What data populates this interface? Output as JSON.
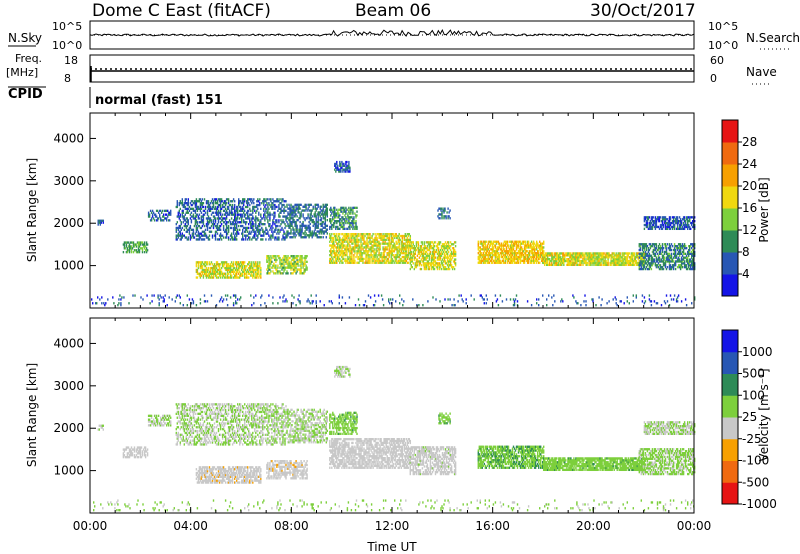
{
  "header": {
    "station": "Dome C East (fitACF)",
    "beam": "Beam 06",
    "date": "30/Oct/2017"
  },
  "strips": {
    "nsky_label": "N.Sky",
    "nsearch_label": "N.Search",
    "nsky_ticks": [
      "10^5",
      "10^0"
    ],
    "nsearch_ticks": [
      "10^5",
      "10^0"
    ],
    "freq_label_1": "Freq.",
    "freq_label_2": "[MHz]",
    "freq_ticks": [
      "18",
      "8"
    ],
    "nave_label": "Nave",
    "nave_ticks": [
      "60",
      "0"
    ],
    "cpid_label": "CPID",
    "cpid_value": "normal (fast)  151"
  },
  "colors": {
    "power": [
      "#1414e6",
      "#2857b4",
      "#2e8b57",
      "#7dcf3c",
      "#f0d80f",
      "#f7a000",
      "#f06a10",
      "#e61414"
    ],
    "velocity": [
      "#e61414",
      "#f06a10",
      "#f7a000",
      "#c8c8c8",
      "#7dcf3c",
      "#2e8b57",
      "#2857b4",
      "#1414e6"
    ]
  },
  "chart_data": [
    {
      "type": "heatmap",
      "panel": "power",
      "xlabel": "",
      "ylabel": "Slant Range [km]",
      "x_range_hours": [
        0,
        24
      ],
      "ylim": [
        0,
        4600
      ],
      "y_ticks": [
        "4000",
        "3000",
        "2000",
        "1000"
      ],
      "colorbar": {
        "label": "Power [dB]",
        "tick_labels": [
          "28",
          "24",
          "20",
          "16",
          "12",
          "8",
          "4"
        ],
        "range": [
          0,
          32
        ]
      },
      "echo_regions": [
        {
          "start": 0.0,
          "end": 24.0,
          "range_lo": 50,
          "range_hi": 300,
          "value": 6,
          "density": 0.08
        },
        {
          "start": 0.3,
          "end": 0.5,
          "range_lo": 1950,
          "range_hi": 2050,
          "value": 6,
          "density": 0.6
        },
        {
          "start": 1.3,
          "end": 2.3,
          "range_lo": 1300,
          "range_hi": 1550,
          "value": 12,
          "density": 0.55
        },
        {
          "start": 2.3,
          "end": 3.2,
          "range_lo": 2050,
          "range_hi": 2300,
          "value": 7,
          "density": 0.5
        },
        {
          "start": 3.4,
          "end": 7.8,
          "range_lo": 1600,
          "range_hi": 2550,
          "value": 7,
          "density": 0.45
        },
        {
          "start": 4.2,
          "end": 6.8,
          "range_lo": 700,
          "range_hi": 1100,
          "value": 17,
          "density": 0.65
        },
        {
          "start": 7.0,
          "end": 8.6,
          "range_lo": 800,
          "range_hi": 1250,
          "value": 15,
          "density": 0.6
        },
        {
          "start": 7.8,
          "end": 9.4,
          "range_lo": 1650,
          "range_hi": 2450,
          "value": 8,
          "density": 0.5
        },
        {
          "start": 9.7,
          "end": 10.3,
          "range_lo": 3200,
          "range_hi": 3450,
          "value": 6,
          "density": 0.6
        },
        {
          "start": 9.5,
          "end": 10.6,
          "range_lo": 1850,
          "range_hi": 2350,
          "value": 10,
          "density": 0.55
        },
        {
          "start": 9.5,
          "end": 12.7,
          "range_lo": 1050,
          "range_hi": 1750,
          "value": 17,
          "density": 0.65
        },
        {
          "start": 12.7,
          "end": 14.5,
          "range_lo": 900,
          "range_hi": 1550,
          "value": 17,
          "density": 0.6
        },
        {
          "start": 13.8,
          "end": 14.3,
          "range_lo": 2100,
          "range_hi": 2350,
          "value": 8,
          "density": 0.5
        },
        {
          "start": 15.4,
          "end": 18.0,
          "range_lo": 1050,
          "range_hi": 1550,
          "value": 19,
          "density": 0.7
        },
        {
          "start": 18.0,
          "end": 22.0,
          "range_lo": 1000,
          "range_hi": 1300,
          "value": 17,
          "density": 0.8
        },
        {
          "start": 21.8,
          "end": 24.0,
          "range_lo": 900,
          "range_hi": 1500,
          "value": 9,
          "density": 0.6
        },
        {
          "start": 22.0,
          "end": 24.0,
          "range_lo": 1850,
          "range_hi": 2150,
          "value": 6,
          "density": 0.65
        }
      ]
    },
    {
      "type": "heatmap",
      "panel": "velocity",
      "xlabel": "Time UT",
      "ylabel": "Slant Range [km]",
      "x_range_hours": [
        0,
        24
      ],
      "x_tick_labels": [
        "00:00",
        "04:00",
        "08:00",
        "12:00",
        "16:00",
        "20:00",
        "00:00"
      ],
      "ylim": [
        0,
        4600
      ],
      "y_ticks": [
        "4000",
        "3000",
        "2000",
        "1000"
      ],
      "colorbar": {
        "label": "Velocity [m s⁻¹]",
        "tick_labels": [
          "1000",
          "500",
          "100",
          "25",
          "-25",
          "-100",
          "-500",
          "-1000"
        ],
        "range": [
          -1250,
          1250
        ]
      },
      "echo_regions": [
        {
          "start": 0.0,
          "end": 24.0,
          "range_lo": 50,
          "range_hi": 300,
          "value": 60,
          "density": 0.06
        },
        {
          "start": 0.3,
          "end": 0.5,
          "range_lo": 1950,
          "range_hi": 2050,
          "value": 0,
          "density": 0.6
        },
        {
          "start": 1.3,
          "end": 2.3,
          "range_lo": 1300,
          "range_hi": 1550,
          "value": -180,
          "density": 0.55
        },
        {
          "start": 2.3,
          "end": 3.2,
          "range_lo": 2050,
          "range_hi": 2300,
          "value": 0,
          "density": 0.5
        },
        {
          "start": 3.4,
          "end": 7.8,
          "range_lo": 1600,
          "range_hi": 2550,
          "value": 0,
          "density": 0.45
        },
        {
          "start": 4.2,
          "end": 6.8,
          "range_lo": 700,
          "range_hi": 1100,
          "value": -200,
          "density": 0.65
        },
        {
          "start": 7.0,
          "end": 8.6,
          "range_lo": 800,
          "range_hi": 1250,
          "value": -200,
          "density": 0.6
        },
        {
          "start": 7.8,
          "end": 9.4,
          "range_lo": 1650,
          "range_hi": 2450,
          "value": 0,
          "density": 0.5
        },
        {
          "start": 9.7,
          "end": 10.3,
          "range_lo": 3200,
          "range_hi": 3450,
          "value": 0,
          "density": 0.6
        },
        {
          "start": 9.5,
          "end": 10.6,
          "range_lo": 1850,
          "range_hi": 2350,
          "value": 200,
          "density": 0.55
        },
        {
          "start": 9.5,
          "end": 12.7,
          "range_lo": 1050,
          "range_hi": 1750,
          "value": -150,
          "density": 0.65
        },
        {
          "start": 12.7,
          "end": 14.5,
          "range_lo": 900,
          "range_hi": 1550,
          "value": -120,
          "density": 0.6
        },
        {
          "start": 13.8,
          "end": 14.3,
          "range_lo": 2100,
          "range_hi": 2350,
          "value": 200,
          "density": 0.5
        },
        {
          "start": 15.4,
          "end": 18.0,
          "range_lo": 1050,
          "range_hi": 1550,
          "value": 250,
          "density": 0.7
        },
        {
          "start": 18.0,
          "end": 22.0,
          "range_lo": 1000,
          "range_hi": 1300,
          "value": 200,
          "density": 0.8
        },
        {
          "start": 21.8,
          "end": 24.0,
          "range_lo": 900,
          "range_hi": 1500,
          "value": 60,
          "density": 0.6
        },
        {
          "start": 22.0,
          "end": 24.0,
          "range_lo": 1850,
          "range_hi": 2150,
          "value": 0,
          "density": 0.65
        }
      ]
    }
  ]
}
